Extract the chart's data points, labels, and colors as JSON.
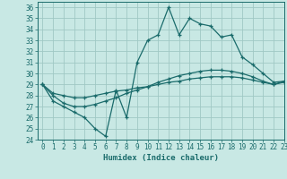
{
  "xlabel": "Humidex (Indice chaleur)",
  "ylabel": "",
  "bg_color": "#c8e8e4",
  "line_color": "#1a6b6b",
  "grid_color": "#a0c8c4",
  "xlim": [
    -0.5,
    23
  ],
  "ylim": [
    24,
    36.5
  ],
  "xticks": [
    0,
    1,
    2,
    3,
    4,
    5,
    6,
    7,
    8,
    9,
    10,
    11,
    12,
    13,
    14,
    15,
    16,
    17,
    18,
    19,
    20,
    21,
    22,
    23
  ],
  "yticks": [
    24,
    25,
    26,
    27,
    28,
    29,
    30,
    31,
    32,
    33,
    34,
    35,
    36
  ],
  "series": [
    [
      29.0,
      27.5,
      27.0,
      26.5,
      26.0,
      25.0,
      24.3,
      28.5,
      26.0,
      31.0,
      33.0,
      33.5,
      36.0,
      33.5,
      35.0,
      34.5,
      34.3,
      33.3,
      33.5,
      31.5,
      30.8,
      30.0,
      29.2,
      29.3
    ],
    [
      29.0,
      28.0,
      27.3,
      27.0,
      27.0,
      27.2,
      27.5,
      27.8,
      28.2,
      28.5,
      28.8,
      29.2,
      29.5,
      29.8,
      30.0,
      30.2,
      30.3,
      30.3,
      30.2,
      30.0,
      29.7,
      29.3,
      29.0,
      29.3
    ],
    [
      29.0,
      28.2,
      28.0,
      27.8,
      27.8,
      28.0,
      28.2,
      28.4,
      28.5,
      28.7,
      28.8,
      29.0,
      29.2,
      29.3,
      29.5,
      29.6,
      29.7,
      29.7,
      29.7,
      29.6,
      29.4,
      29.2,
      29.0,
      29.2
    ]
  ]
}
